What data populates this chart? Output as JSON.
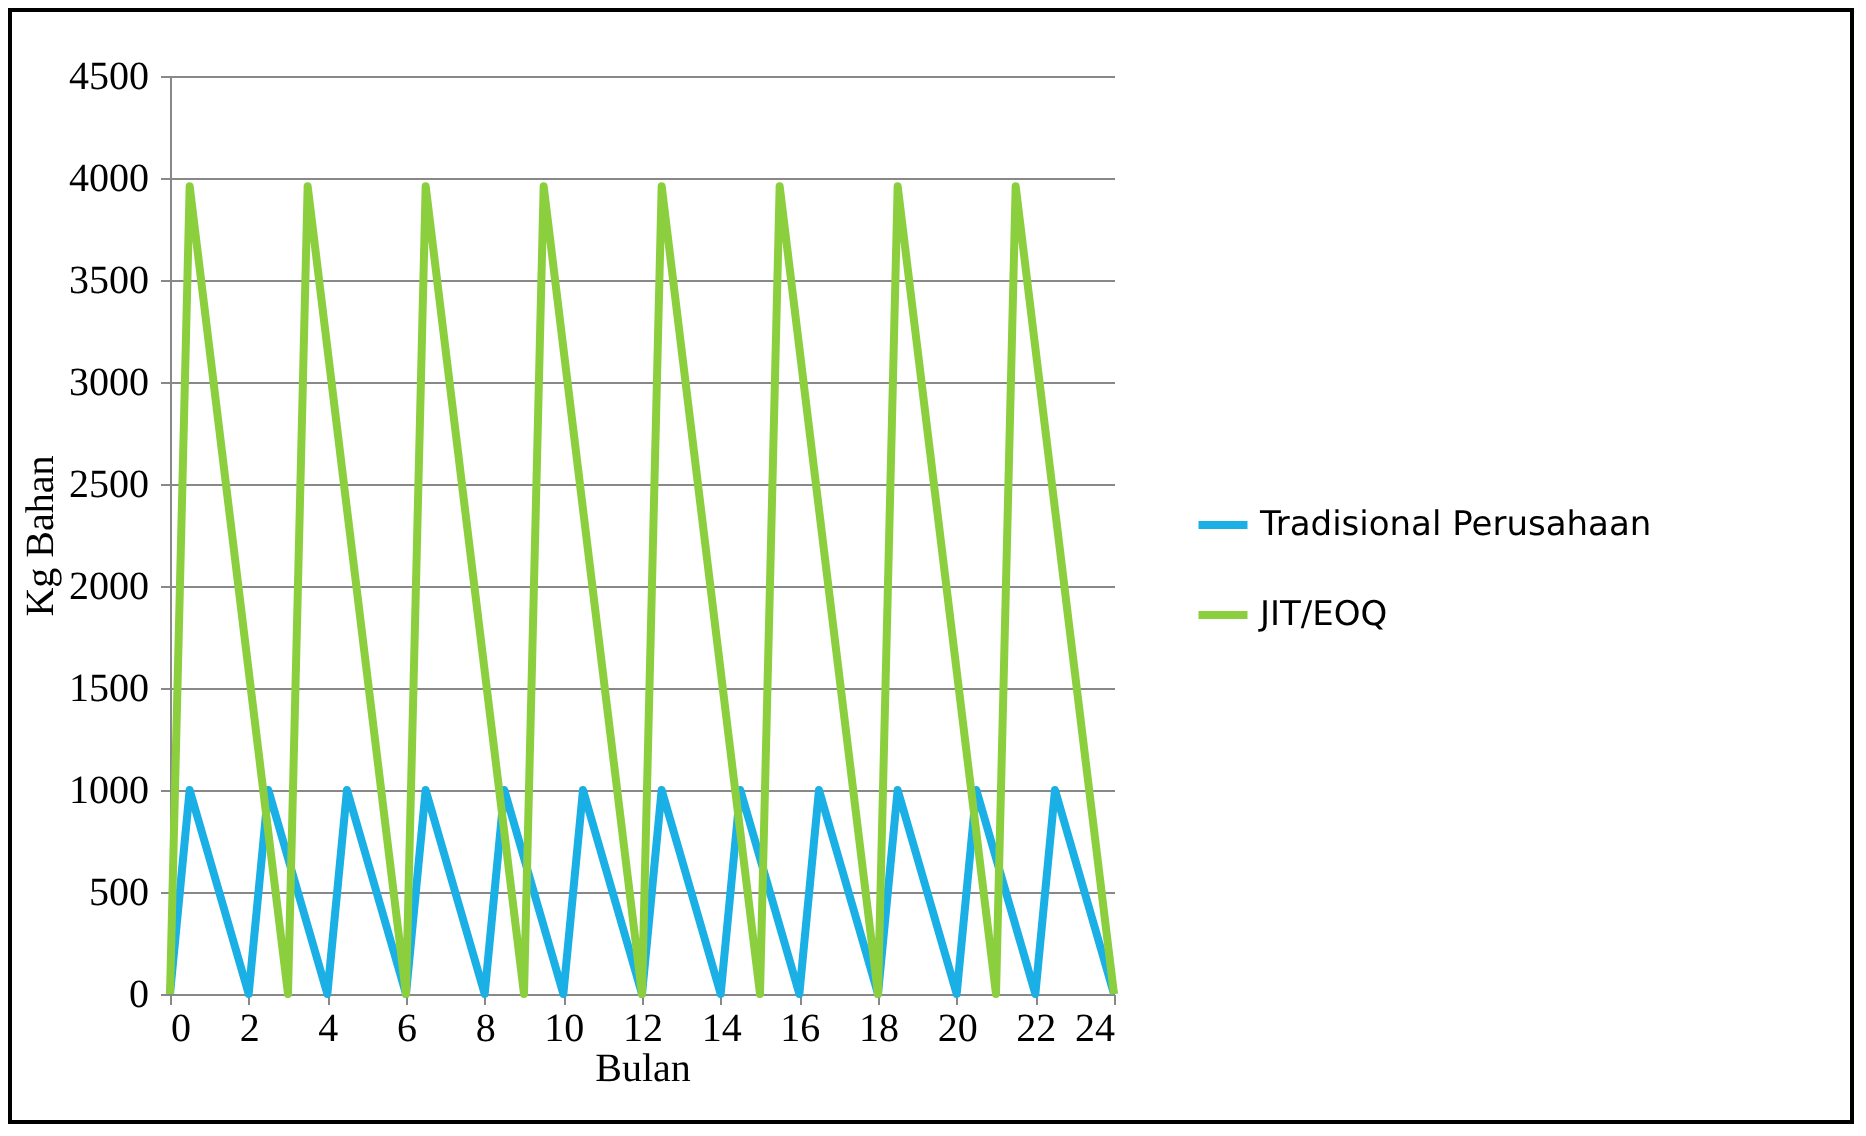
{
  "chart_data": {
    "type": "line",
    "xlabel": "Bulan",
    "ylabel": "Kg Bahan",
    "xlim": [
      0,
      24
    ],
    "xticks": [
      0,
      2,
      4,
      6,
      8,
      10,
      12,
      14,
      16,
      18,
      20,
      22,
      24
    ],
    "ylim": [
      0,
      4500
    ],
    "yticks": [
      0,
      500,
      1000,
      1500,
      2000,
      2500,
      3000,
      3500,
      4000,
      4500
    ],
    "grid": "y",
    "legend": "right",
    "marker": "none",
    "line_style": "solid",
    "series": [
      {
        "name": "Tradisional Perusahaan",
        "color": "#1ab0e6",
        "x": [
          0,
          0.5,
          2,
          2.5,
          4,
          4.5,
          6,
          6.5,
          8,
          8.5,
          10,
          10.5,
          12,
          12.5,
          14,
          14.5,
          16,
          16.5,
          18,
          18.5,
          20,
          20.5,
          22,
          22.5,
          24
        ],
        "values": [
          0,
          1000,
          0,
          1000,
          0,
          1000,
          0,
          1000,
          0,
          1000,
          0,
          1000,
          0,
          1000,
          0,
          1000,
          0,
          1000,
          0,
          1000,
          0,
          1000,
          0,
          1000,
          0
        ]
      },
      {
        "name": "JIT/EOQ",
        "color": "#8ccf3e",
        "x": [
          0,
          0.5,
          3,
          3.5,
          6,
          6.5,
          9,
          9.5,
          12,
          12.5,
          15,
          15.5,
          18,
          18.5,
          21,
          21.5,
          24
        ],
        "values": [
          0,
          3960,
          0,
          3960,
          0,
          3960,
          0,
          3960,
          0,
          3960,
          0,
          3960,
          0,
          3960,
          0,
          3960,
          0
        ]
      }
    ]
  }
}
